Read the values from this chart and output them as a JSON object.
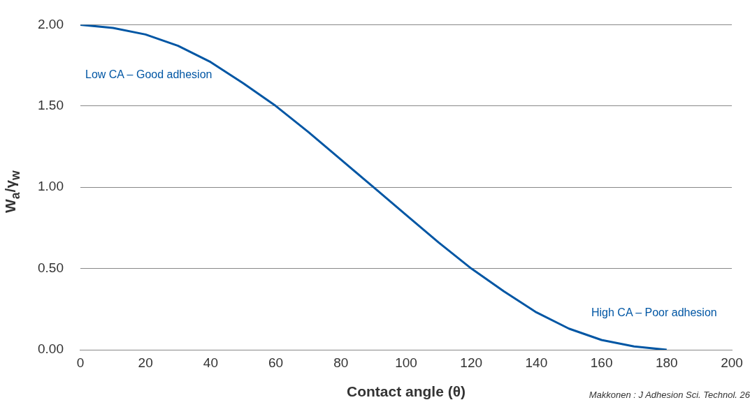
{
  "chart_data": {
    "type": "line",
    "xlabel": "Contact angle (θ)",
    "ylabel": "W$_{a}$/γ$_{w}$",
    "x": [
      0,
      10,
      20,
      30,
      40,
      50,
      60,
      70,
      80,
      90,
      100,
      110,
      120,
      130,
      140,
      150,
      160,
      170,
      180
    ],
    "series": [
      {
        "color": "#0056a4",
        "values": [
          2.0,
          1.98,
          1.94,
          1.87,
          1.77,
          1.64,
          1.5,
          1.34,
          1.17,
          1.0,
          0.83,
          0.66,
          0.5,
          0.36,
          0.23,
          0.13,
          0.06,
          0.02,
          0.0
        ]
      }
    ],
    "xlim": [
      0,
      200
    ],
    "xticks": [
      0,
      20,
      40,
      60,
      80,
      100,
      120,
      140,
      160,
      180,
      200
    ],
    "ylim": [
      0,
      2
    ],
    "yticks": [
      {
        "value": 0,
        "label": "0.00"
      },
      {
        "value": 0.5,
        "label": "0.50"
      },
      {
        "value": 1,
        "label": "1.00"
      },
      {
        "value": 1.5,
        "label": "1.50"
      },
      {
        "value": 2,
        "label": "2.00"
      }
    ],
    "grid": "y",
    "legend": false,
    "marker": "none",
    "line_style": "solid",
    "annotations": [
      "Low CA – Good adhesion",
      "High CA – Poor adhesion",
      "Makkonen : J Adhesion Sci. Technol. 26"
    ]
  }
}
